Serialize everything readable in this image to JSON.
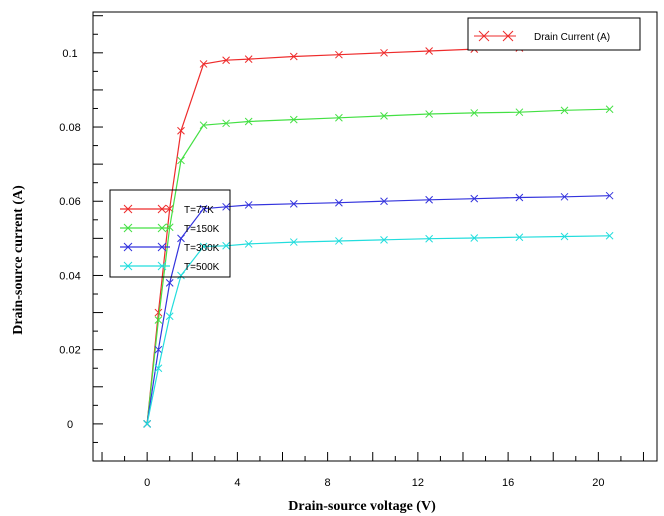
{
  "chart_data": {
    "type": "line",
    "xlabel": "Drain-source voltage (V)",
    "ylabel": "Drain-source current (A)",
    "xlim": [
      -2.4,
      22.6
    ],
    "ylim": [
      -0.01,
      0.111
    ],
    "x_ticks": [
      0,
      4,
      8,
      12,
      16,
      20
    ],
    "y_ticks": [
      0,
      0.02,
      0.04,
      0.06,
      0.08,
      0.1
    ],
    "x_tick_labels": [
      "0",
      "4",
      "8",
      "12",
      "16",
      "20"
    ],
    "y_tick_labels": [
      "0",
      "0.02",
      "0.04",
      "0.06",
      "0.08",
      "0.1"
    ],
    "grid": false,
    "legend_placement": "center-left",
    "top_legend_label": "Drain Current (A)",
    "series": [
      {
        "name": "T=77K",
        "color": "#ee2b2b",
        "x": [
          0,
          0.5,
          1,
          1.5,
          2.5,
          3.5,
          4.5,
          6.5,
          8.5,
          10.5,
          12.5,
          14.5,
          16.5,
          18.5,
          20.5
        ],
        "y": [
          0,
          0.03,
          0.058,
          0.079,
          0.097,
          0.098,
          0.0983,
          0.099,
          0.0995,
          0.1,
          0.1005,
          0.101,
          0.1013,
          0.1017,
          0.102
        ]
      },
      {
        "name": "T=150K",
        "color": "#44e044",
        "x": [
          0,
          0.5,
          1,
          1.5,
          2.5,
          3.5,
          4.5,
          6.5,
          8.5,
          10.5,
          12.5,
          14.5,
          16.5,
          18.5,
          20.5
        ],
        "y": [
          0,
          0.028,
          0.053,
          0.071,
          0.0805,
          0.081,
          0.0815,
          0.082,
          0.0825,
          0.083,
          0.0835,
          0.0838,
          0.084,
          0.0845,
          0.0848
        ]
      },
      {
        "name": "T=300K",
        "color": "#3333dd",
        "x": [
          0,
          0.5,
          1,
          1.5,
          2.5,
          3.5,
          4.5,
          6.5,
          8.5,
          10.5,
          12.5,
          14.5,
          16.5,
          18.5,
          20.5
        ],
        "y": [
          0,
          0.02,
          0.038,
          0.05,
          0.058,
          0.0585,
          0.059,
          0.0593,
          0.0596,
          0.06,
          0.0604,
          0.0607,
          0.061,
          0.0612,
          0.0615
        ]
      },
      {
        "name": "T=500K",
        "color": "#22dddd",
        "x": [
          0,
          0.5,
          1,
          1.5,
          2.5,
          3.5,
          4.5,
          6.5,
          8.5,
          10.5,
          12.5,
          14.5,
          16.5,
          18.5,
          20.5
        ],
        "y": [
          0,
          0.015,
          0.029,
          0.04,
          0.0478,
          0.048,
          0.0485,
          0.049,
          0.0493,
          0.0496,
          0.0499,
          0.0501,
          0.0503,
          0.0505,
          0.0507
        ]
      }
    ]
  }
}
